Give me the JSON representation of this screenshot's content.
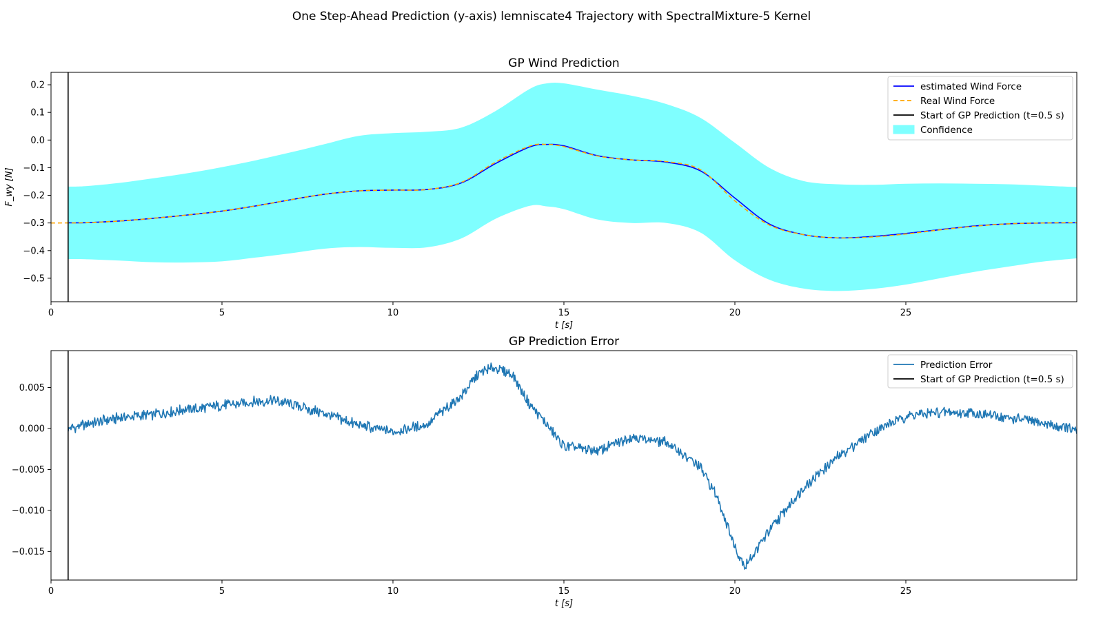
{
  "figure": {
    "suptitle": "One Step-Ahead Prediction (y-axis) lemniscate4 Trajectory with SpectralMixture-5 Kernel"
  },
  "chart_data": [
    {
      "type": "line",
      "title": "GP Wind Prediction",
      "xlabel": "t [s]",
      "ylabel": "F_wy [N]",
      "xlim": [
        0,
        30
      ],
      "ylim": [
        -0.585,
        0.245
      ],
      "xticks": [
        0,
        5,
        10,
        15,
        20,
        25
      ],
      "xtick_labels": [
        "0",
        "5",
        "10",
        "15",
        "20",
        "25"
      ],
      "yticks": [
        0.2,
        0.1,
        0.0,
        -0.1,
        -0.2,
        -0.3,
        -0.4,
        -0.5
      ],
      "ytick_labels": [
        "0.2",
        "0.1",
        "0.0",
        "−0.1",
        "−0.2",
        "−0.3",
        "−0.4",
        "−0.5"
      ],
      "grid": false,
      "legend_position": "top-right",
      "vline": {
        "x": 0.5,
        "label": "Start of GP Prediction (t=0.5 s)",
        "color": "#000000"
      },
      "legend": [
        {
          "label": "estimated Wind Force",
          "kind": "line",
          "color": "#0000ff",
          "dash": ""
        },
        {
          "label": "Real Wind Force",
          "kind": "line",
          "color": "#ffa500",
          "dash": "6,4"
        },
        {
          "label": "Start of GP Prediction (t=0.5 s)",
          "kind": "line",
          "color": "#000000",
          "dash": ""
        },
        {
          "label": "Confidence",
          "kind": "patch",
          "color": "#7fffff",
          "dash": ""
        }
      ],
      "x": [
        0,
        1,
        2,
        3,
        4,
        5,
        6,
        7,
        8,
        9,
        10,
        11,
        12,
        13,
        14,
        14.5,
        15,
        16,
        17,
        18,
        19,
        20,
        21,
        22,
        23,
        24,
        25,
        26,
        27,
        28,
        29,
        30
      ],
      "series": [
        {
          "name": "estimated Wind Force",
          "color": "#0000ff",
          "style": "solid",
          "x_start": 0.5,
          "values": [
            -0.3,
            -0.299,
            -0.293,
            -0.283,
            -0.271,
            -0.257,
            -0.238,
            -0.216,
            -0.196,
            -0.184,
            -0.181,
            -0.179,
            -0.155,
            -0.085,
            -0.025,
            -0.016,
            -0.021,
            -0.057,
            -0.072,
            -0.08,
            -0.112,
            -0.21,
            -0.303,
            -0.342,
            -0.354,
            -0.349,
            -0.338,
            -0.324,
            -0.311,
            -0.303,
            -0.3,
            -0.299
          ]
        },
        {
          "name": "Real Wind Force",
          "color": "#ffa500",
          "style": "dashed",
          "x_start": 0,
          "values": [
            -0.3,
            -0.299,
            -0.293,
            -0.283,
            -0.271,
            -0.257,
            -0.238,
            -0.216,
            -0.196,
            -0.184,
            -0.181,
            -0.179,
            -0.153,
            -0.08,
            -0.022,
            -0.016,
            -0.024,
            -0.058,
            -0.072,
            -0.078,
            -0.108,
            -0.22,
            -0.307,
            -0.342,
            -0.354,
            -0.351,
            -0.34,
            -0.325,
            -0.312,
            -0.303,
            -0.3,
            -0.299
          ]
        }
      ],
      "confidence": {
        "name": "Confidence",
        "color": "#7fffff",
        "x_start": 0.5,
        "upper": [
          -0.17,
          -0.167,
          -0.155,
          -0.138,
          -0.12,
          -0.098,
          -0.073,
          -0.045,
          -0.015,
          0.015,
          0.025,
          0.03,
          0.045,
          0.105,
          0.185,
          0.205,
          0.205,
          0.182,
          0.16,
          0.13,
          0.08,
          -0.01,
          -0.1,
          -0.148,
          -0.16,
          -0.162,
          -0.158,
          -0.157,
          -0.158,
          -0.16,
          -0.165,
          -0.17
        ],
        "lower": [
          -0.43,
          -0.431,
          -0.436,
          -0.442,
          -0.443,
          -0.439,
          -0.425,
          -0.41,
          -0.393,
          -0.387,
          -0.39,
          -0.388,
          -0.356,
          -0.285,
          -0.238,
          -0.24,
          -0.25,
          -0.288,
          -0.3,
          -0.3,
          -0.335,
          -0.435,
          -0.505,
          -0.537,
          -0.546,
          -0.539,
          -0.523,
          -0.5,
          -0.477,
          -0.458,
          -0.44,
          -0.428
        ]
      }
    },
    {
      "type": "line",
      "title": "GP Prediction Error",
      "xlabel": "t [s]",
      "ylabel": "",
      "xlim": [
        0,
        30
      ],
      "ylim": [
        -0.0185,
        0.0095
      ],
      "xticks": [
        0,
        5,
        10,
        15,
        20,
        25
      ],
      "xtick_labels": [
        "0",
        "5",
        "10",
        "15",
        "20",
        "25"
      ],
      "yticks": [
        0.005,
        0.0,
        -0.005,
        -0.01,
        -0.015
      ],
      "ytick_labels": [
        "0.005",
        "0.000",
        "−0.005",
        "−0.010",
        "−0.015"
      ],
      "grid": false,
      "legend_position": "top-right",
      "vline": {
        "x": 0.5,
        "label": "Start of GP Prediction (t=0.5 s)",
        "color": "#000000"
      },
      "legend": [
        {
          "label": "Prediction Error",
          "kind": "line",
          "color": "#1f77b4",
          "dash": ""
        },
        {
          "label": "Start of GP Prediction (t=0.5 s)",
          "kind": "line",
          "color": "#000000",
          "dash": ""
        }
      ],
      "x": [
        0.5,
        1,
        2,
        3,
        4,
        5,
        6,
        6.5,
        7,
        8,
        9,
        10,
        11,
        12,
        12.5,
        13,
        13.5,
        14,
        15,
        16,
        17,
        18,
        19,
        19.5,
        20,
        20.3,
        21,
        22,
        23,
        24,
        25,
        26,
        27,
        28,
        29,
        30
      ],
      "series": [
        {
          "name": "Prediction Error",
          "color": "#1f77b4",
          "style": "solid",
          "x_start": 0.5,
          "values": [
            0.0,
            0.0005,
            0.0013,
            0.0017,
            0.0023,
            0.0028,
            0.0033,
            0.0034,
            0.003,
            0.0018,
            0.0004,
            -0.0004,
            0.0005,
            0.004,
            0.0067,
            0.0075,
            0.0065,
            0.003,
            -0.0022,
            -0.0027,
            -0.001,
            -0.0017,
            -0.0048,
            -0.0085,
            -0.0145,
            -0.0168,
            -0.0125,
            -0.0072,
            -0.0035,
            -0.0005,
            0.0015,
            0.002,
            0.0019,
            0.0013,
            0.0007,
            -0.0003
          ]
        }
      ]
    }
  ]
}
